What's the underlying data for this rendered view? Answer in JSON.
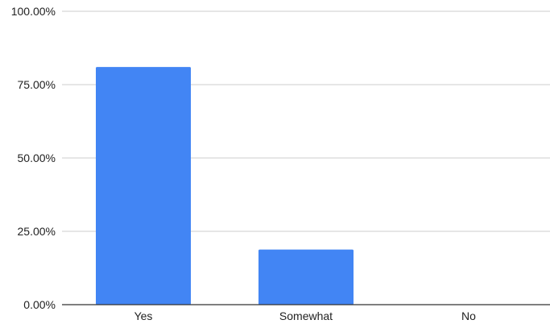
{
  "chart_data": {
    "type": "bar",
    "categories": [
      "Yes",
      "Somewhat",
      "No"
    ],
    "values": [
      81.0,
      18.8,
      0.0
    ],
    "ylim": [
      0,
      100
    ],
    "yticks": [
      0,
      25,
      50,
      75,
      100
    ],
    "ytick_labels": [
      "0.00%",
      "25.00%",
      "50.00%",
      "75.00%",
      "100.00%"
    ],
    "grid": true,
    "legend": "none",
    "colors": {
      "bar": "#4285f4",
      "grid": "#cccccc",
      "axis": "#333333"
    }
  }
}
